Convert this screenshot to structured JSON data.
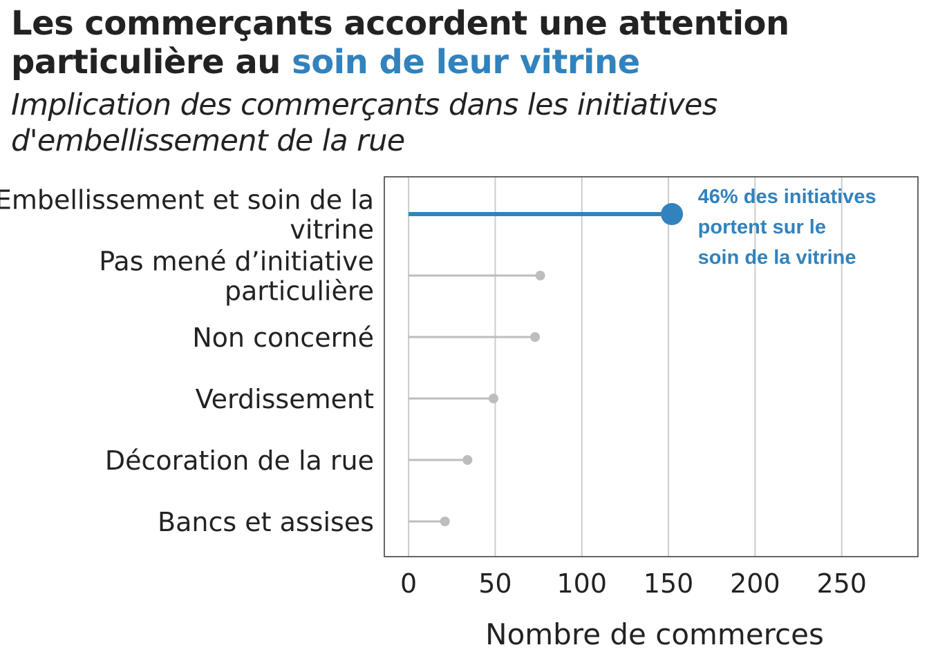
{
  "title": {
    "part1": "Les commerçants accordent une attention particulière au ",
    "highlight": "soin de leur vitrine"
  },
  "subtitle": "Implication des commerçants dans les initiatives d'embellissement de la rue",
  "colors": {
    "highlight": "#3182bd",
    "other": "#bdbdbd",
    "grid": "#cccccc",
    "text": "#222222"
  },
  "chart_data": {
    "type": "lollipop",
    "orientation": "horizontal",
    "categories": [
      [
        "Embellissement et soin de la",
        "vitrine"
      ],
      [
        "Pas mené d’initiative",
        "particulière"
      ],
      [
        "Non concerné"
      ],
      [
        "Verdissement"
      ],
      [
        "Décoration de la rue"
      ],
      [
        "Bancs et assises"
      ]
    ],
    "values": [
      152,
      76,
      73,
      49,
      34,
      21
    ],
    "highlight_index": 0,
    "xlabel": "Nombre de commerces",
    "xlim": [
      -14,
      294
    ],
    "xticks": [
      0,
      50,
      100,
      150,
      200,
      250
    ],
    "grid": "vertical",
    "annotation": {
      "lines": [
        "46% des initiatives",
        "portent sur le",
        "soin de la vitrine"
      ],
      "x": 167
    }
  }
}
